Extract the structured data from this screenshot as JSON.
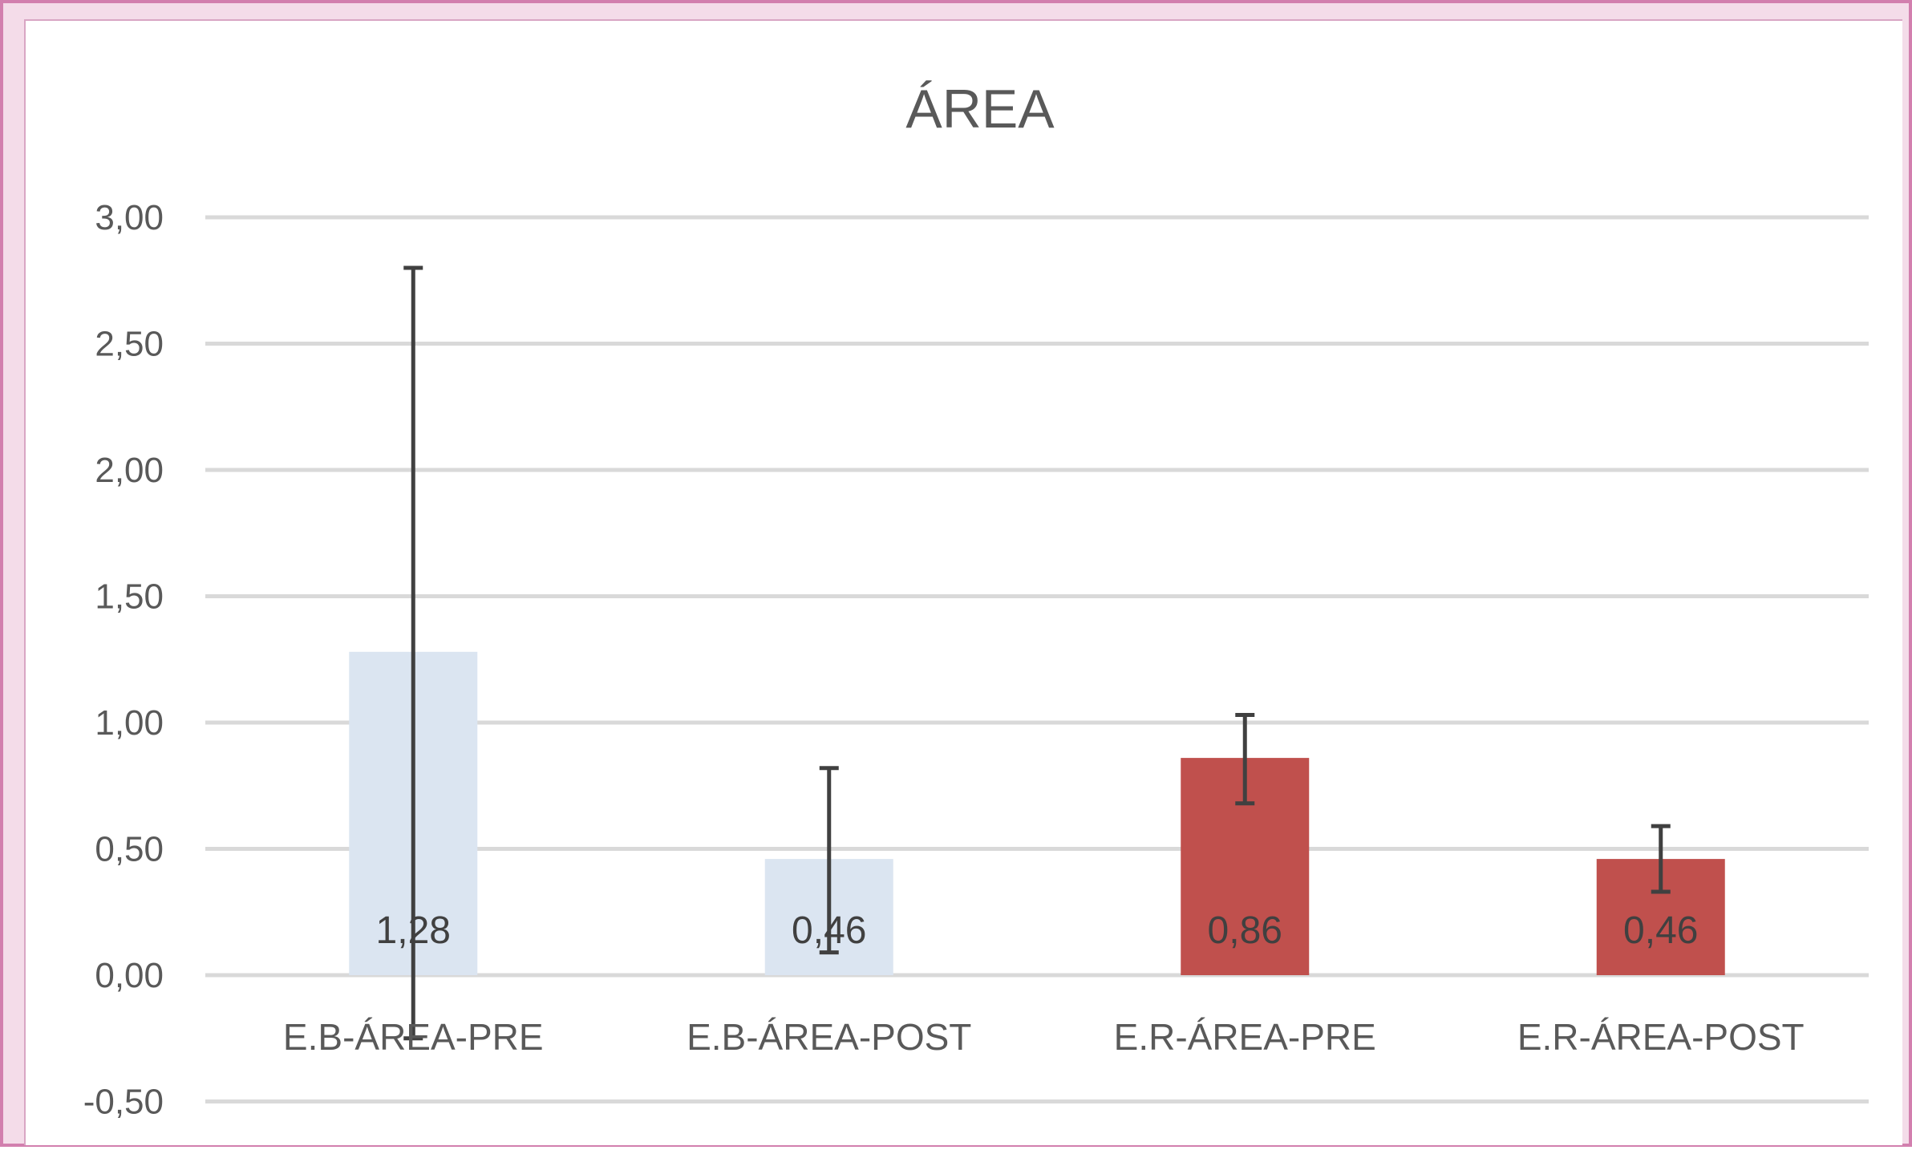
{
  "chart_data": {
    "type": "bar",
    "title": "ÁREA",
    "categories": [
      "E.B-ÁREA-PRE",
      "E.B-ÁREA-POST",
      "E.R-ÁREA-PRE",
      "E.R-ÁREA-POST"
    ],
    "values": [
      1.28,
      0.46,
      0.86,
      0.46
    ],
    "value_labels": [
      "1,28",
      "0,46",
      "0,86",
      "0,46"
    ],
    "error_bars": [
      {
        "low": -0.25,
        "high": 2.8
      },
      {
        "low": 0.09,
        "high": 0.82
      },
      {
        "low": 0.68,
        "high": 1.03
      },
      {
        "low": 0.33,
        "high": 0.59
      }
    ],
    "bar_colors": [
      "#dbe5f1",
      "#dbe5f1",
      "#c0504d",
      "#c0504d"
    ],
    "ylim": [
      -0.5,
      3.0
    ],
    "yticks": [
      -0.5,
      0.0,
      0.5,
      1.0,
      1.5,
      2.0,
      2.5,
      3.0
    ],
    "ytick_labels": [
      "-0,50",
      "0,00",
      "0,50",
      "1,00",
      "1,50",
      "2,00",
      "2,50",
      "3,00"
    ],
    "grid": true,
    "xlabel": "",
    "ylabel": ""
  }
}
